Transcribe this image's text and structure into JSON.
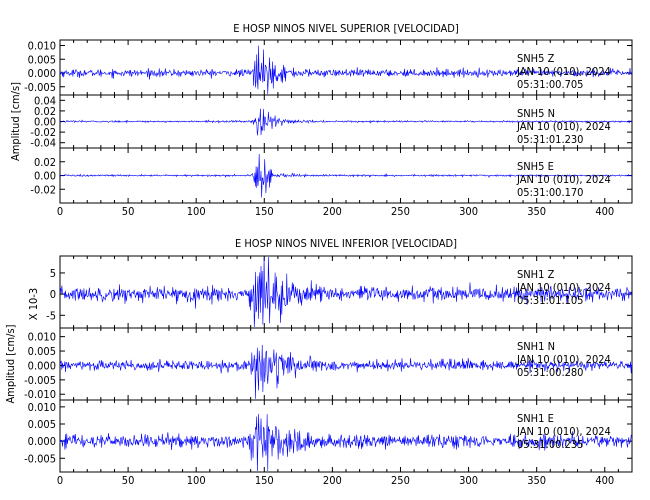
{
  "chart_data": [
    {
      "type": "line",
      "title": "E HOSP NINOS NIVEL SUPERIOR [VELOCIDAD]",
      "ylabel": "Amplitud [cm/s]",
      "xlabel": "",
      "xlim": [
        0,
        420
      ],
      "x_ticks": [
        "0",
        "50",
        "100",
        "150",
        "200",
        "250",
        "300",
        "350",
        "400"
      ],
      "x_tick_values": [
        0,
        50,
        100,
        150,
        200,
        250,
        300,
        350,
        400
      ],
      "traces": [
        {
          "station": "SNH5",
          "component": "Z",
          "date": "JAN 10 (010), 2024",
          "time": "05:31:00.705",
          "ylim": [
            -0.008,
            0.012
          ],
          "y_ticks": [
            "0.010",
            "0.005",
            "0.000",
            "-0.005"
          ],
          "y_tick_values": [
            0.01,
            0.005,
            0.0,
            -0.005
          ],
          "noise": 0.0012,
          "peak": 0.0095,
          "event_start": 140,
          "event_peak": 146,
          "decay": 9
        },
        {
          "station": "SNH5",
          "component": "N",
          "date": "JAN 10 (010), 2024",
          "time": "05:31:01.230",
          "ylim": [
            -0.05,
            0.05
          ],
          "y_ticks": [
            "0.04",
            "0.02",
            "0.00",
            "-0.02",
            "-0.04"
          ],
          "y_tick_values": [
            0.04,
            0.02,
            0.0,
            -0.02,
            -0.04
          ],
          "noise": 0.0015,
          "peak": 0.042,
          "event_start": 141,
          "event_peak": 147,
          "decay": 8
        },
        {
          "station": "SNH5",
          "component": "E",
          "date": "JAN 10 (010), 2024",
          "time": "05:31:00.170",
          "ylim": [
            -0.04,
            0.04
          ],
          "y_ticks": [
            "0.02",
            "0.00",
            "-0.02"
          ],
          "y_tick_values": [
            0.02,
            0.0,
            -0.02
          ],
          "noise": 0.0012,
          "peak": 0.033,
          "event_start": 140,
          "event_peak": 146,
          "decay": 8
        }
      ]
    },
    {
      "type": "line",
      "title": "E HOSP NINOS NIVEL INFERIOR [VELOCIDAD]",
      "ylabel": "Amplitud [cm/s]",
      "y_multiplier": "X 10-3",
      "xlabel": "",
      "xlim": [
        0,
        420
      ],
      "x_ticks": [
        "0",
        "50",
        "100",
        "150",
        "200",
        "250",
        "300",
        "350",
        "400"
      ],
      "x_tick_values": [
        0,
        50,
        100,
        150,
        200,
        250,
        300,
        350,
        400
      ],
      "traces": [
        {
          "station": "SNH1",
          "component": "Z",
          "date": "JAN 10 (010), 2024",
          "time": "05:31:01.105",
          "ylim": [
            -8,
            9
          ],
          "y_ticks": [
            "5",
            "0",
            "-5"
          ],
          "y_tick_values": [
            5,
            0,
            -5
          ],
          "noise": 1.6,
          "peak": 8.5,
          "event_start": 138,
          "event_peak": 146,
          "decay": 14
        },
        {
          "station": "SNH1",
          "component": "N",
          "date": "JAN 10 (010), 2024",
          "time": "05:31:00.280",
          "ylim": [
            -0.012,
            0.013
          ],
          "y_ticks": [
            "0.010",
            "0.005",
            "0.000",
            "-0.005",
            "-0.010"
          ],
          "y_tick_values": [
            0.01,
            0.005,
            0.0,
            -0.005,
            -0.01
          ],
          "noise": 0.0016,
          "peak": 0.0115,
          "event_start": 139,
          "event_peak": 147,
          "decay": 12
        },
        {
          "station": "SNH1",
          "component": "E",
          "date": "JAN 10 (010), 2024",
          "time": "05:31:00.235",
          "ylim": [
            -0.009,
            0.012
          ],
          "y_ticks": [
            "0.010",
            "0.005",
            "0.000",
            "-0.005"
          ],
          "y_tick_values": [
            0.01,
            0.005,
            0.0,
            -0.005
          ],
          "noise": 0.0018,
          "peak": 0.0105,
          "event_start": 138,
          "event_peak": 147,
          "decay": 13
        }
      ]
    }
  ],
  "colors": {
    "trace": "#0000ff",
    "axes": "#000000",
    "background": "#ffffff"
  }
}
